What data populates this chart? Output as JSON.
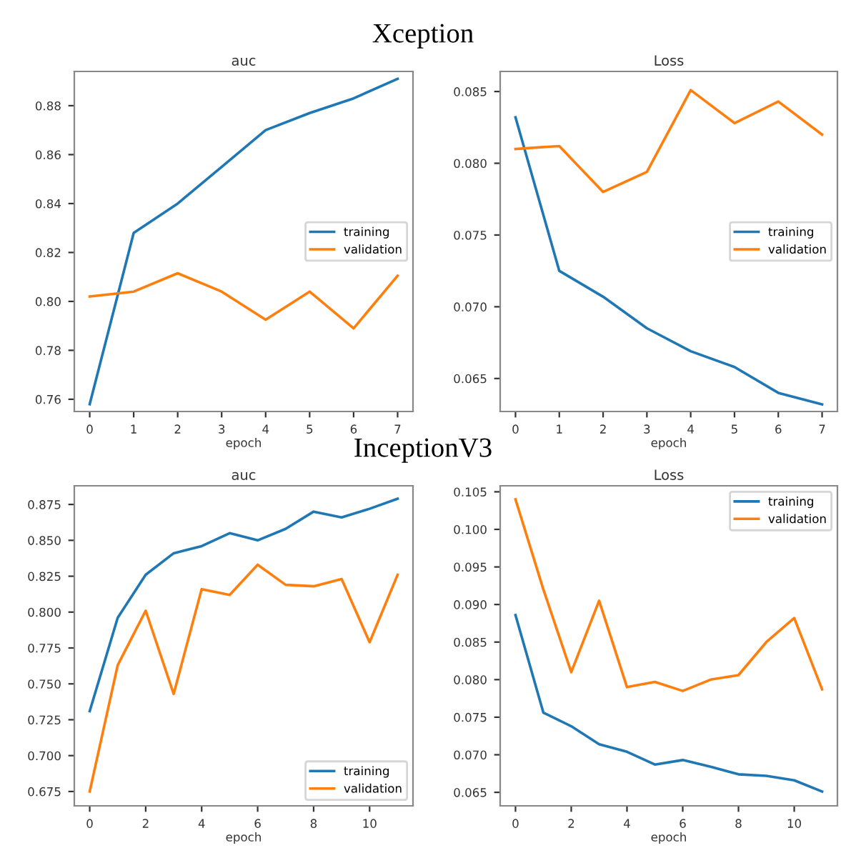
{
  "chart_data": [
    {
      "type": "line",
      "title": "auc",
      "xlabel": "epoch",
      "annotations": [
        "Xception"
      ],
      "x": [
        0,
        1,
        2,
        3,
        4,
        5,
        6,
        7
      ],
      "xlim": [
        -0.35,
        7.35
      ],
      "xticks": [
        0,
        1,
        2,
        3,
        4,
        5,
        6,
        7
      ],
      "ylim": [
        0.755,
        0.894
      ],
      "yticks": [
        {
          "value": 0.76,
          "label": "0.76"
        },
        {
          "value": 0.78,
          "label": "0.78"
        },
        {
          "value": 0.8,
          "label": "0.80"
        },
        {
          "value": 0.82,
          "label": "0.82"
        },
        {
          "value": 0.84,
          "label": "0.84"
        },
        {
          "value": 0.86,
          "label": "0.86"
        },
        {
          "value": 0.88,
          "label": "0.88"
        }
      ],
      "legend": "center right",
      "grid": false,
      "series": [
        {
          "name": "training",
          "color": "#1f77b4",
          "values": [
            0.758,
            0.828,
            0.84,
            0.855,
            0.87,
            0.877,
            0.883,
            0.891
          ]
        },
        {
          "name": "validation",
          "color": "#ff7f0e",
          "values": [
            0.802,
            0.804,
            0.8115,
            0.804,
            0.7925,
            0.804,
            0.789,
            0.8105
          ]
        }
      ]
    },
    {
      "type": "line",
      "title": "Loss",
      "xlabel": "epoch",
      "x": [
        0,
        1,
        2,
        3,
        4,
        5,
        6,
        7
      ],
      "xlim": [
        -0.35,
        7.35
      ],
      "xticks": [
        0,
        1,
        2,
        3,
        4,
        5,
        6,
        7
      ],
      "ylim": [
        0.0627,
        0.0864
      ],
      "yticks": [
        {
          "value": 0.065,
          "label": "0.065"
        },
        {
          "value": 0.07,
          "label": "0.070"
        },
        {
          "value": 0.075,
          "label": "0.075"
        },
        {
          "value": 0.08,
          "label": "0.080"
        },
        {
          "value": 0.085,
          "label": "0.085"
        }
      ],
      "legend": "center right",
      "grid": false,
      "series": [
        {
          "name": "training",
          "color": "#1f77b4",
          "values": [
            0.0832,
            0.0725,
            0.0707,
            0.0685,
            0.0669,
            0.0658,
            0.064,
            0.0632
          ]
        },
        {
          "name": "validation",
          "color": "#ff7f0e",
          "values": [
            0.081,
            0.0812,
            0.078,
            0.0794,
            0.0851,
            0.0828,
            0.0843,
            0.082
          ]
        }
      ]
    },
    {
      "type": "line",
      "title": "auc",
      "xlabel": "epoch",
      "annotations": [
        "InceptionV3"
      ],
      "x": [
        0,
        1,
        2,
        3,
        4,
        5,
        6,
        7,
        8,
        9,
        10,
        11
      ],
      "xlim": [
        -0.55,
        11.55
      ],
      "xticks": [
        0,
        2,
        4,
        6,
        8,
        10
      ],
      "ylim": [
        0.665,
        0.888
      ],
      "yticks": [
        {
          "value": 0.675,
          "label": "0.675"
        },
        {
          "value": 0.7,
          "label": "0.700"
        },
        {
          "value": 0.725,
          "label": "0.725"
        },
        {
          "value": 0.75,
          "label": "0.750"
        },
        {
          "value": 0.775,
          "label": "0.775"
        },
        {
          "value": 0.8,
          "label": "0.800"
        },
        {
          "value": 0.825,
          "label": "0.825"
        },
        {
          "value": 0.85,
          "label": "0.850"
        },
        {
          "value": 0.875,
          "label": "0.875"
        }
      ],
      "legend": "lower right",
      "grid": false,
      "series": [
        {
          "name": "training",
          "color": "#1f77b4",
          "values": [
            0.731,
            0.796,
            0.826,
            0.841,
            0.846,
            0.855,
            0.85,
            0.858,
            0.87,
            0.866,
            0.872,
            0.879
          ]
        },
        {
          "name": "validation",
          "color": "#ff7f0e",
          "values": [
            0.675,
            0.763,
            0.801,
            0.743,
            0.816,
            0.812,
            0.833,
            0.819,
            0.818,
            0.823,
            0.779,
            0.826
          ]
        }
      ]
    },
    {
      "type": "line",
      "title": "Loss",
      "xlabel": "epoch",
      "x": [
        0,
        1,
        2,
        3,
        4,
        5,
        6,
        7,
        8,
        9,
        10,
        11
      ],
      "xlim": [
        -0.55,
        11.55
      ],
      "xticks": [
        0,
        2,
        4,
        6,
        8,
        10
      ],
      "ylim": [
        0.0632,
        0.1058
      ],
      "yticks": [
        {
          "value": 0.065,
          "label": "0.065"
        },
        {
          "value": 0.07,
          "label": "0.070"
        },
        {
          "value": 0.075,
          "label": "0.075"
        },
        {
          "value": 0.08,
          "label": "0.080"
        },
        {
          "value": 0.085,
          "label": "0.085"
        },
        {
          "value": 0.09,
          "label": "0.090"
        },
        {
          "value": 0.095,
          "label": "0.095"
        },
        {
          "value": 0.1,
          "label": "0.100"
        },
        {
          "value": 0.105,
          "label": "0.105"
        }
      ],
      "legend": "upper right",
      "grid": false,
      "series": [
        {
          "name": "training",
          "color": "#1f77b4",
          "values": [
            0.0886,
            0.0756,
            0.0738,
            0.0714,
            0.0704,
            0.0687,
            0.0693,
            0.0684,
            0.0674,
            0.0672,
            0.0666,
            0.0651
          ]
        },
        {
          "name": "validation",
          "color": "#ff7f0e",
          "values": [
            0.104,
            0.092,
            0.081,
            0.0905,
            0.079,
            0.0797,
            0.0785,
            0.08,
            0.0806,
            0.085,
            0.0882,
            0.0787
          ]
        }
      ]
    }
  ]
}
